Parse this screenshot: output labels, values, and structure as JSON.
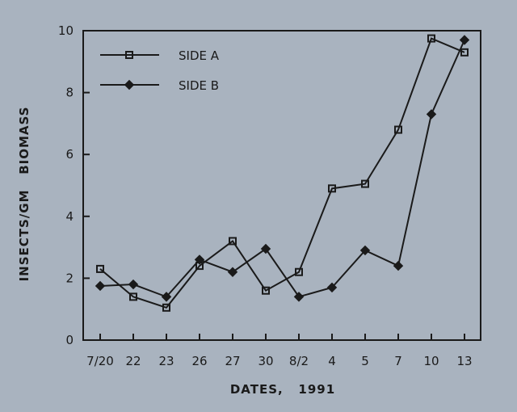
{
  "chart_data": {
    "type": "line",
    "categories": [
      "7/20",
      "22",
      "23",
      "26",
      "27",
      "30",
      "8/2",
      "4",
      "5",
      "7",
      "10",
      "13"
    ],
    "series": [
      {
        "name": "SIDE A",
        "marker": "open-square",
        "values": [
          2.3,
          1.4,
          1.05,
          2.4,
          3.2,
          1.6,
          2.2,
          4.9,
          5.05,
          6.8,
          9.75,
          9.3
        ]
      },
      {
        "name": "SIDE B",
        "marker": "filled-diamond",
        "values": [
          1.75,
          1.8,
          1.4,
          2.6,
          2.2,
          2.95,
          1.4,
          1.7,
          2.9,
          2.4,
          7.3,
          9.7
        ]
      }
    ],
    "xlabel": "DATES,   1991",
    "ylabel": "INSECTS/GM   BIOMASS",
    "ylim": [
      0,
      10
    ],
    "yticks": [
      0,
      2,
      4,
      6,
      8,
      10
    ],
    "grid": false,
    "legend_position": "top-left",
    "colors": {
      "background": "#a9b3bf",
      "ink": "#1a1a1a"
    }
  }
}
